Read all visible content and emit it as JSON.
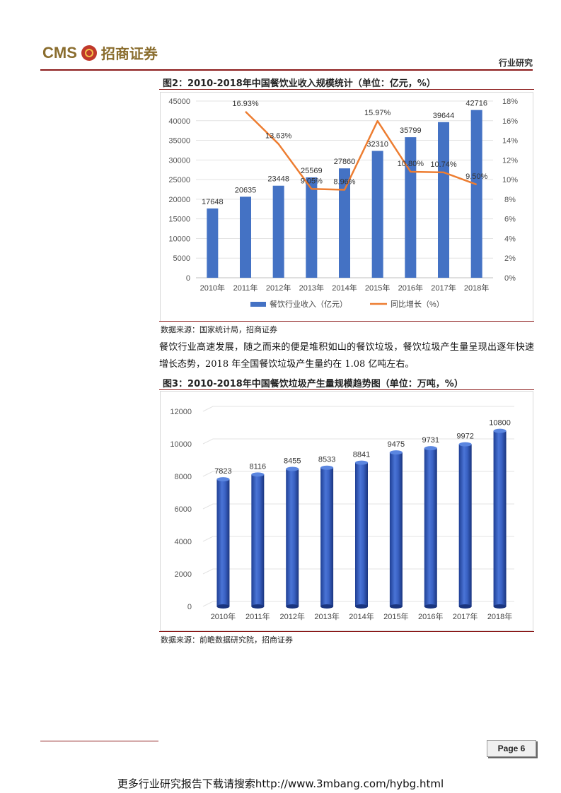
{
  "header": {
    "logo_text": "CMS",
    "logo_cn": "招商证券",
    "section": "行业研究"
  },
  "figure2": {
    "title": "图2：2010-2018年中国餐饮业收入规模统计（单位：亿元，%）",
    "source": "数据来源：国家统计局，招商证券"
  },
  "paragraph": "餐饮行业高速发展，随之而来的便是堆积如山的餐饮垃圾，餐饮垃圾产生量呈现出逐年快速增长态势，2018 年全国餐饮垃圾产生量约在 1.08 亿吨左右。",
  "figure3": {
    "title": "图3：2010-2018年中国餐饮垃圾产生量规模趋势图（单位：万吨，%）",
    "source": "数据来源：前瞻数据研究院，招商证券"
  },
  "page_label": "Page 6",
  "footer_url": "更多行业研究报告下载请搜索http://www.3mbang.com/hybg.html",
  "colors": {
    "bar_blue": "#4472c4",
    "line_orange": "#ed7d31",
    "accent_red": "#8b1a1a"
  },
  "chart_data": [
    {
      "type": "bar",
      "categories": [
        "2010年",
        "2011年",
        "2012年",
        "2013年",
        "2014年",
        "2015年",
        "2016年",
        "2017年",
        "2018年"
      ],
      "series": [
        {
          "name": "餐饮行业收入（亿元）",
          "type": "bar",
          "axis": "left",
          "values": [
            17648,
            20635,
            23448,
            25569,
            27860,
            32310,
            35799,
            39644,
            42716
          ],
          "labels": [
            "17648",
            "20635",
            "23448",
            "25569",
            "27860",
            "32310",
            "35799",
            "39644",
            "42716"
          ]
        },
        {
          "name": "同比增长（%）",
          "type": "line",
          "axis": "right",
          "values": [
            null,
            16.93,
            13.63,
            9.05,
            8.96,
            15.97,
            10.8,
            10.74,
            9.5
          ],
          "labels": [
            "",
            "16.93%",
            "13.63%",
            "9.05%",
            "8.96%",
            "15.97%",
            "10.80%",
            "10.74%",
            "9.50%"
          ]
        }
      ],
      "left_ticks": [
        "0",
        "5000",
        "10000",
        "15000",
        "20000",
        "25000",
        "30000",
        "35000",
        "40000",
        "45000"
      ],
      "right_ticks": [
        "0%",
        "2%",
        "4%",
        "6%",
        "8%",
        "10%",
        "12%",
        "14%",
        "16%",
        "18%"
      ],
      "ylim_left": [
        0,
        45000
      ],
      "ylim_right": [
        0,
        18
      ],
      "legend": "bottom",
      "grid": true
    },
    {
      "type": "bar",
      "categories": [
        "2010年",
        "2011年",
        "2012年",
        "2013年",
        "2014年",
        "2015年",
        "2016年",
        "2017年",
        "2018年"
      ],
      "series": [
        {
          "values": [
            7823,
            8116,
            8455,
            8533,
            8841,
            9475,
            9731,
            9972,
            10800
          ],
          "labels": [
            "7823",
            "8116",
            "8455",
            "8533",
            "8841",
            "9475",
            "9731",
            "9972",
            "10800"
          ]
        }
      ],
      "ticks": [
        "0",
        "2000",
        "4000",
        "6000",
        "8000",
        "10000",
        "12000"
      ],
      "ylim": [
        0,
        12000
      ],
      "style": "3d-cylinder",
      "grid": true
    }
  ]
}
